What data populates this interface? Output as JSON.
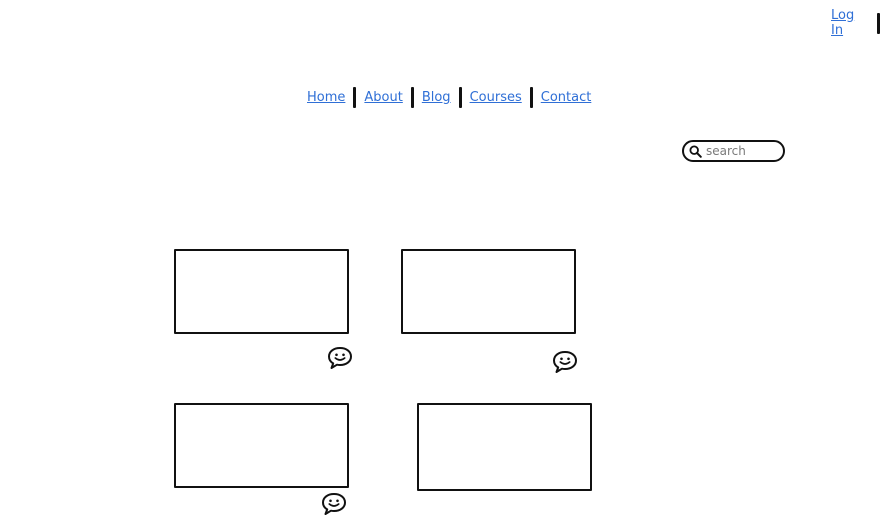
{
  "header": {
    "login_label": "Log In"
  },
  "nav": {
    "items": [
      {
        "label": "Home"
      },
      {
        "label": "About"
      },
      {
        "label": "Blog"
      },
      {
        "label": "Courses"
      },
      {
        "label": "Contact"
      }
    ]
  },
  "search": {
    "placeholder": "search",
    "value": ""
  },
  "icons": {
    "search": "search-icon",
    "comment": "comment-icon"
  },
  "colors": {
    "link": "#2f6fd6",
    "stroke": "#111111"
  }
}
